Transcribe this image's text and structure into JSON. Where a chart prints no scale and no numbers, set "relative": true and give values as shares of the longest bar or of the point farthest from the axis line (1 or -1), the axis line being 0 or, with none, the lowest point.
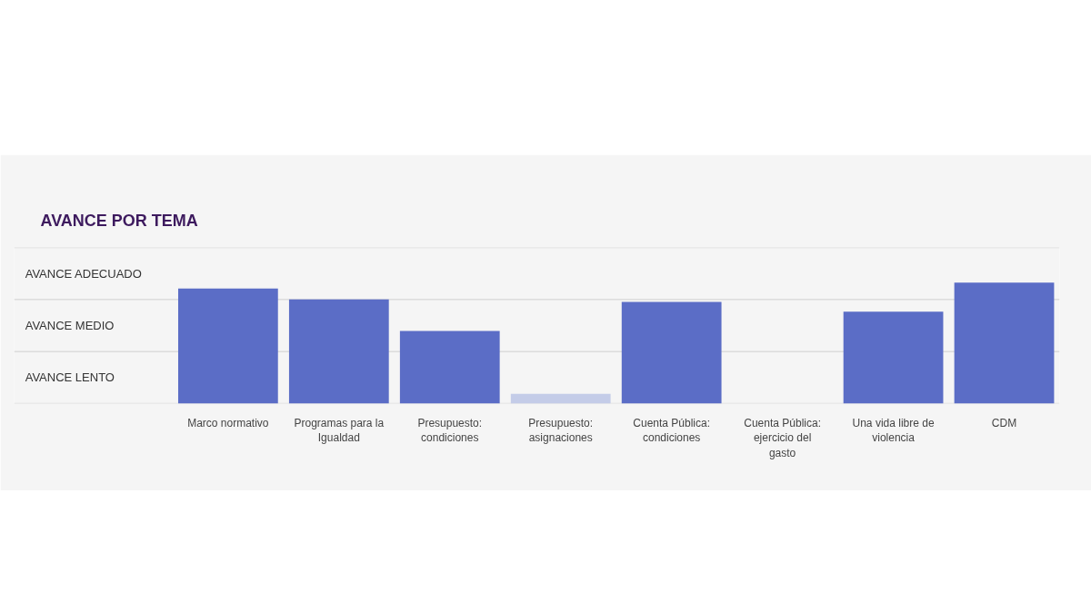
{
  "chart_data": {
    "type": "bar",
    "title": "AVANCE POR TEMA",
    "relative": true,
    "categories": [
      "Marco normativo",
      "Programas para la Igualdad",
      "Presupuesto: condiciones",
      "Presupuesto: asignaciones",
      "Cuenta Pública: condiciones",
      "Cuenta Pública: ejercicio del gasto",
      "Una vida libre de violencia",
      "CDM"
    ],
    "values": [
      0.95,
      0.86,
      0.6,
      0.08,
      0.84,
      null,
      0.76,
      1
    ],
    "colors": [
      "#5b6dc6",
      "#5b6dc6",
      "#5b6dc6",
      "#c4cce8",
      "#5b6dc6",
      "#5b6dc6",
      "#5b6dc6",
      "#5b6dc6"
    ],
    "ref_lines": [
      {
        "axis": "y",
        "value": 0,
        "color": "#dcdcdc"
      },
      {
        "axis": "y",
        "value": 0.43,
        "color": "#dcdcdc"
      },
      {
        "axis": "y",
        "value": 0.86,
        "color": "#dcdcdc"
      },
      {
        "axis": "y",
        "value": 1.29,
        "color": "#dcdcdc"
      }
    ],
    "annotations": [
      "AVANCE ADECUADO",
      "AVANCE MEDIO",
      "AVANCE LENTO"
    ]
  }
}
